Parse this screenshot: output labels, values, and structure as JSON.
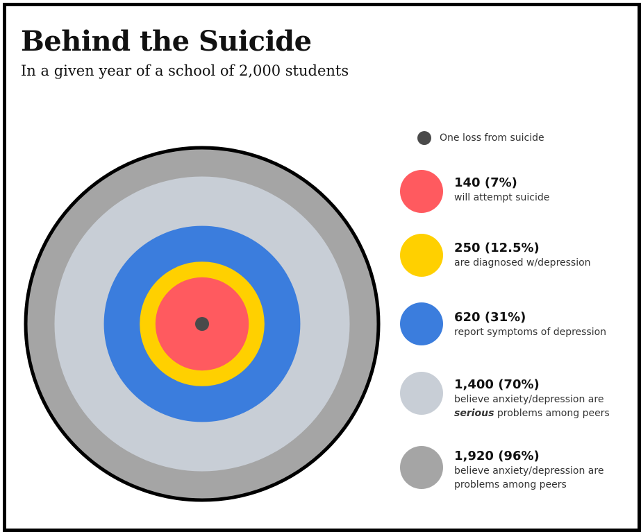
{
  "title": "Behind the Suicide",
  "subtitle": "In a given year of a school of 2,000 students",
  "colors": {
    "loss": "#4a4a4a",
    "attempt": "#ff5a5f",
    "diagnosed": "#ffd000",
    "symptoms": "#3b7ddd",
    "serious": "#c8ced6",
    "problems": "#a5a5a5",
    "outline": "#000000"
  },
  "legend": {
    "loss_label": "One loss from suicide",
    "items": [
      {
        "key": "attempt",
        "value_text": "140 (7%)",
        "desc_lines": [
          "will attempt suicide"
        ]
      },
      {
        "key": "diagnosed",
        "value_text": "250 (12.5%)",
        "desc_lines": [
          "are diagnosed w/depression"
        ]
      },
      {
        "key": "symptoms",
        "value_text": "620 (31%)",
        "desc_lines": [
          "report symptoms of depression"
        ]
      },
      {
        "key": "serious",
        "value_text": "1,400 (70%)",
        "desc_lines": [
          "believe anxiety/depression are"
        ],
        "desc_emph": "serious",
        "desc_after": " problems among peers"
      },
      {
        "key": "problems",
        "value_text": "1,920 (96%)",
        "desc_lines": [
          "believe anxiety/depression are",
          "problems among peers"
        ]
      }
    ]
  },
  "chart_data": {
    "type": "concentric-circles",
    "total": 2000,
    "title": "Behind the Suicide",
    "subtitle": "In a given year of a school of 2,000 students",
    "categories": [
      "One loss from suicide",
      "will attempt suicide",
      "are diagnosed w/depression",
      "report symptoms of depression",
      "believe anxiety/depression are serious problems among peers",
      "believe anxiety/depression are problems among peers"
    ],
    "values": [
      1,
      140,
      250,
      620,
      1400,
      1920
    ],
    "percents": [
      null,
      7,
      12.5,
      31,
      70,
      96
    ]
  }
}
